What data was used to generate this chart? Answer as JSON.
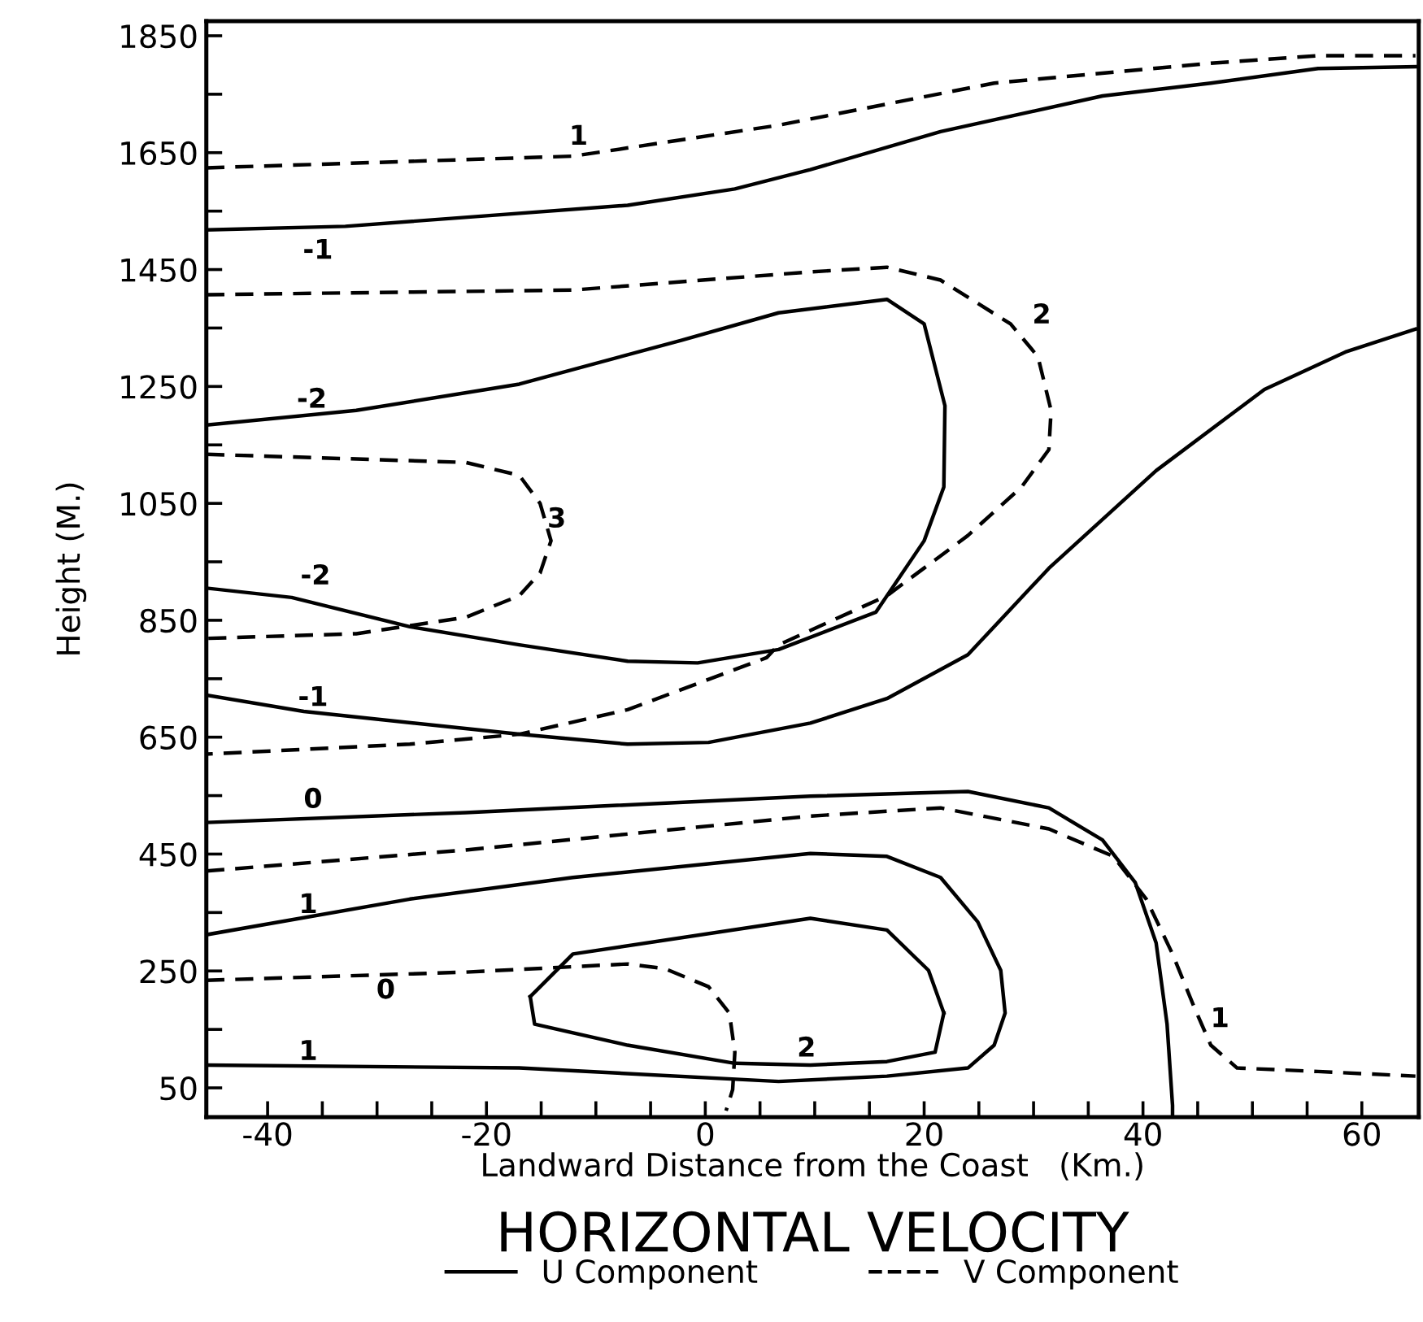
{
  "chart_data": {
    "type": "line",
    "title": "HORIZONTAL VELOCITY",
    "xlabel": "Landward Distance from the Coast   (Km.)",
    "ylabel": "Height (M.)",
    "xlim": [
      -45.6,
      65.2
    ],
    "ylim": [
      0,
      1875
    ],
    "xticks": [
      -40,
      {
        "value": -35,
        "label": null
      },
      {
        "value": -30,
        "label": null
      },
      {
        "value": -25,
        "label": null
      },
      -20,
      {
        "value": -15,
        "label": null
      },
      {
        "value": -10,
        "label": null
      },
      {
        "value": -5,
        "label": null
      },
      0,
      {
        "value": 5,
        "label": null
      },
      {
        "value": 10,
        "label": null
      },
      {
        "value": 15,
        "label": null
      },
      20,
      {
        "value": 25,
        "label": null
      },
      {
        "value": 30,
        "label": null
      },
      {
        "value": 35,
        "label": null
      },
      40,
      {
        "value": 45,
        "label": null
      },
      {
        "value": 50,
        "label": null
      },
      {
        "value": 55,
        "label": null
      },
      60
    ],
    "yticks": [
      50,
      {
        "value": 150,
        "label": null
      },
      250,
      {
        "value": 350,
        "label": null
      },
      450,
      {
        "value": 550,
        "label": null
      },
      650,
      {
        "value": 750,
        "label": null
      },
      850,
      {
        "value": 950,
        "label": null
      },
      1050,
      {
        "value": 1150,
        "label": null
      },
      1250,
      {
        "value": 1350,
        "label": null
      },
      1450,
      {
        "value": 1550,
        "label": null
      },
      1650,
      {
        "value": 1750,
        "label": null
      },
      1850
    ],
    "grid": false,
    "legend": "bottom",
    "marker": "none",
    "series": [
      {
        "name": "U Component",
        "color": "#000000",
        "line_style": "solid",
        "x": [
          -45.6,
          -32.9,
          -7.1,
          2.7,
          9.6,
          21.5,
          36.3,
          46.2,
          56.0,
          64.9
        ],
        "values": [
          1518,
          1524,
          1560,
          1588,
          1621,
          1686,
          1747,
          1769,
          1794,
          1797
        ]
      },
      {
        "name": "V Component",
        "color": "#000000",
        "line_style": "dashed",
        "x": [
          -45.6,
          -12.1,
          6.7,
          26.4,
          46.2,
          56.0,
          64.9
        ],
        "values": [
          1624,
          1644,
          1697,
          1769,
          1803,
          1816,
          1816
        ]
      },
      {
        "color": "#000000",
        "line_style": "dashed",
        "x": [
          -45.6,
          -12.1,
          9.6,
          16.6,
          21.5,
          27.9,
          30.4,
          31.6,
          31.4,
          28.9,
          24.0,
          16.6,
          6.7,
          5.6,
          -7.1,
          -17.0,
          -27.0,
          -45.6
        ],
        "values": [
          1407,
          1415,
          1446,
          1454,
          1432,
          1357,
          1301,
          1209,
          1142,
          1078,
          995,
          892,
          808,
          786,
          697,
          655,
          638,
          621
        ]
      },
      {
        "color": "#000000",
        "line_style": "solid",
        "x": [
          -45.6,
          -31.9,
          -17.0,
          -2.2,
          6.7,
          16.6,
          20.0,
          21.9,
          21.8,
          20.0,
          15.6,
          6.7,
          -0.7,
          -7.1,
          -17.0,
          -27.0,
          -37.8,
          -45.6
        ],
        "values": [
          1184,
          1209,
          1254,
          1329,
          1376,
          1399,
          1357,
          1217,
          1078,
          986,
          864,
          800,
          777,
          780,
          808,
          839,
          889,
          905
        ]
      },
      {
        "color": "#000000",
        "line_style": "dashed",
        "x": [
          -45.6,
          -21.9,
          -17.0,
          -15.1,
          -14.1,
          -15.1,
          -17.0,
          -21.9,
          -31.9,
          -45.6
        ],
        "values": [
          1134,
          1120,
          1098,
          1050,
          986,
          931,
          892,
          855,
          827,
          819
        ]
      },
      {
        "color": "#000000",
        "line_style": "solid",
        "x": [
          -45.6,
          -36.7,
          -17.0,
          -7.1,
          0.3,
          9.6,
          16.6,
          24.0,
          31.4,
          41.2,
          51.1,
          58.5,
          64.9
        ],
        "values": [
          722,
          694,
          655,
          638,
          641,
          674,
          716,
          791,
          939,
          1106,
          1245,
          1309,
          1348
        ]
      },
      {
        "color": "#000000",
        "line_style": "solid",
        "x": [
          -45.6,
          -21.9,
          9.6,
          24.0,
          31.4,
          36.3,
          39.3,
          41.2,
          42.2,
          42.7,
          42.7
        ],
        "values": [
          504,
          521,
          549,
          557,
          529,
          474,
          401,
          298,
          159,
          20,
          0
        ]
      },
      {
        "color": "#000000",
        "line_style": "dashed",
        "x": [
          -45.6,
          -21.9,
          9.6,
          21.5,
          31.4,
          37.3,
          40.3,
          42.7,
          44.7,
          46.2,
          48.6,
          56.0,
          64.9
        ],
        "values": [
          421,
          457,
          515,
          529,
          493,
          446,
          373,
          279,
          187,
          123,
          84,
          78,
          70
        ]
      },
      {
        "color": "#000000",
        "line_style": "solid",
        "x": [
          -45.6,
          -27.0,
          -12.1,
          9.6,
          16.6,
          21.5,
          24.9,
          27.0,
          27.4,
          26.4,
          24.0,
          16.6,
          6.7,
          -17.0,
          -45.6
        ],
        "values": [
          312,
          373,
          410,
          451,
          446,
          410,
          334,
          251,
          178,
          123,
          84,
          70,
          61,
          84,
          89
        ]
      },
      {
        "color": "#000000",
        "line_style": "solid",
        "x": [
          -16.0,
          -12.1,
          9.6,
          16.6,
          20.4,
          21.8
        ],
        "values": [
          206,
          279,
          340,
          320,
          251,
          178
        ]
      },
      {
        "color": "#000000",
        "line_style": "solid",
        "x": [
          -16.0,
          -15.6,
          -7.1,
          2.7,
          9.6,
          16.6,
          21.0,
          21.8
        ],
        "values": [
          206,
          159,
          123,
          92,
          89,
          95,
          111,
          178
        ]
      },
      {
        "color": "#000000",
        "line_style": "dashed",
        "x": [
          -45.6,
          -21.9,
          -7.1,
          -3.7,
          0.3,
          2.2,
          2.7,
          2.5,
          1.9
        ],
        "values": [
          234,
          248,
          262,
          254,
          223,
          178,
          111,
          47,
          11
        ]
      }
    ],
    "annotations": [
      "1",
      "-1",
      "2",
      "-2",
      "3",
      "-2",
      "-1",
      "0",
      "1",
      "0",
      "1",
      "2",
      "1"
    ]
  }
}
